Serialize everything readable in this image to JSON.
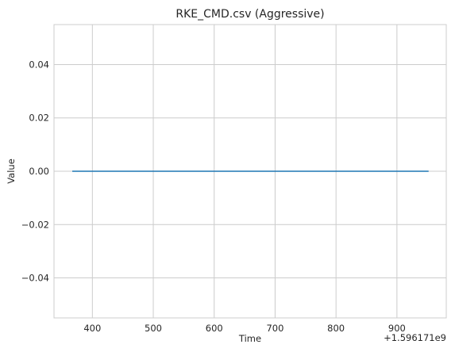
{
  "chart_data": {
    "type": "line",
    "title": "RKE_CMD.csv (Aggressive)",
    "xlabel": "Time",
    "ylabel": "Value",
    "x_offset_label": "+1.596171e9",
    "xlim": [
      337,
      981
    ],
    "ylim": [
      -0.055,
      0.055
    ],
    "x_ticks": [
      400,
      500,
      600,
      700,
      800,
      900
    ],
    "x_tick_labels": [
      "400",
      "500",
      "600",
      "700",
      "800",
      "900"
    ],
    "y_ticks": [
      0.04,
      0.02,
      0.0,
      -0.02,
      -0.04
    ],
    "y_tick_labels": [
      "0.04",
      "0.02",
      "0.00",
      "−0.02",
      "−0.04"
    ],
    "grid": true,
    "series": [
      {
        "color": "#1f77b4",
        "x": [
          367,
          952
        ],
        "y": [
          0,
          0
        ]
      }
    ]
  }
}
